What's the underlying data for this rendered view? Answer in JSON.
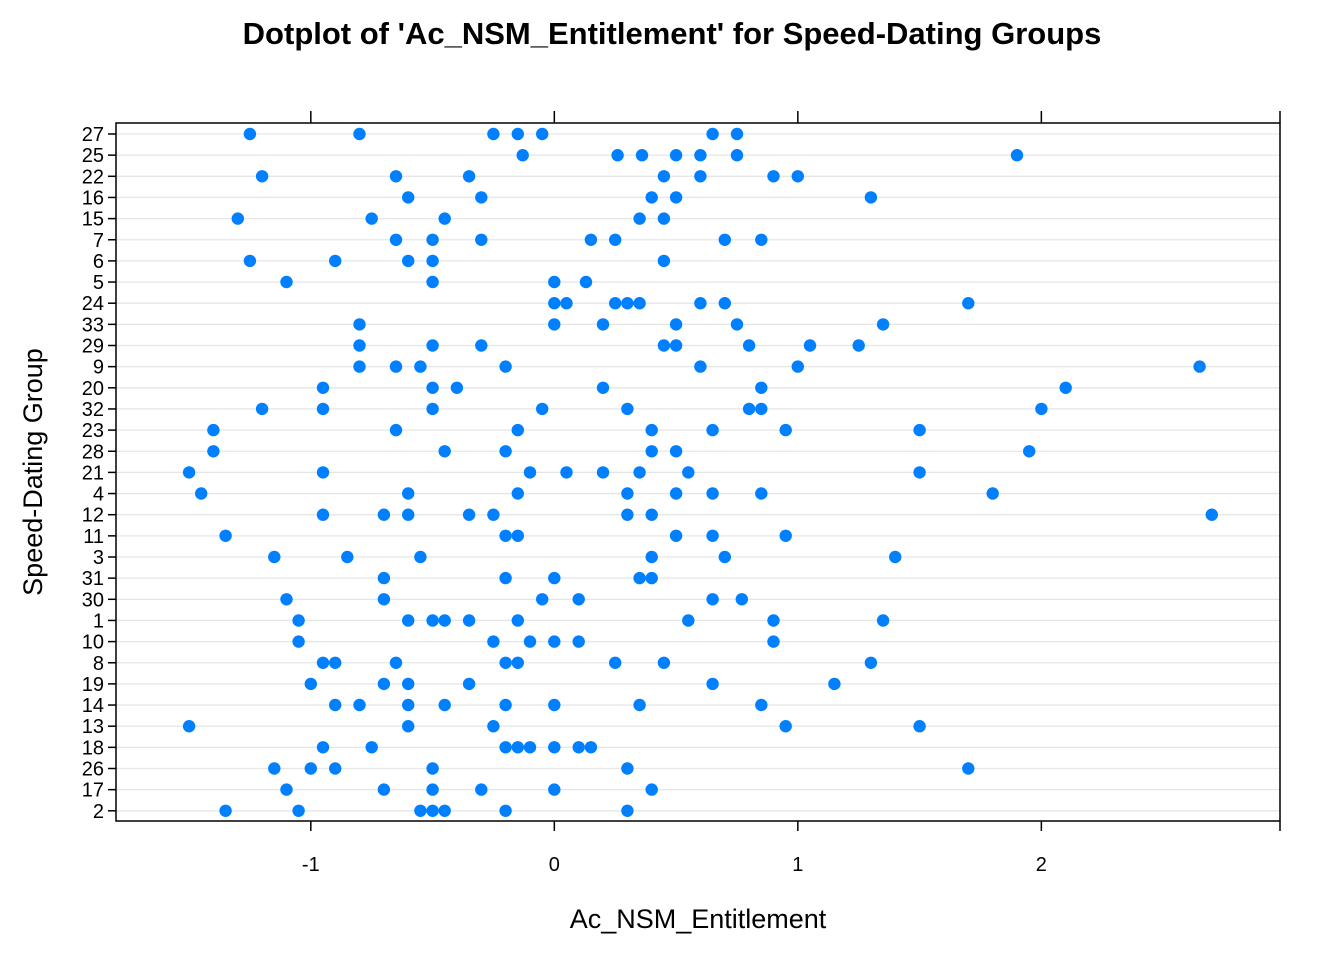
{
  "chart_data": {
    "type": "scatter",
    "title": "Dotplot of 'Ac_NSM_Entitlement' for Speed-Dating Groups",
    "xlabel": "Ac_NSM_Entitlement",
    "ylabel": "Speed-Dating Group",
    "xlim": [
      -1.8,
      2.98
    ],
    "xticks": [
      -1,
      0,
      1,
      2
    ],
    "xtick_labels": [
      "-1",
      "0",
      "1",
      "2"
    ],
    "grid": true,
    "point_color": "#0080ff",
    "categories": [
      "27",
      "25",
      "22",
      "16",
      "15",
      "7",
      "6",
      "5",
      "24",
      "33",
      "29",
      "9",
      "20",
      "32",
      "23",
      "28",
      "21",
      "4",
      "12",
      "11",
      "3",
      "31",
      "30",
      "1",
      "10",
      "8",
      "19",
      "14",
      "13",
      "18",
      "26",
      "17",
      "2"
    ],
    "groups": [
      {
        "group": "27",
        "values": [
          -1.25,
          -0.8,
          -0.25,
          -0.15,
          -0.05,
          0.65,
          0.75
        ]
      },
      {
        "group": "25",
        "values": [
          -0.13,
          0.26,
          0.36,
          0.5,
          0.6,
          0.75,
          1.9
        ]
      },
      {
        "group": "22",
        "values": [
          -1.2,
          -0.65,
          -0.35,
          0.45,
          0.6,
          0.9,
          1.0
        ]
      },
      {
        "group": "16",
        "values": [
          -0.6,
          -0.3,
          0.4,
          0.5,
          1.3
        ]
      },
      {
        "group": "15",
        "values": [
          -1.3,
          -0.75,
          -0.45,
          0.35,
          0.45
        ]
      },
      {
        "group": "7",
        "values": [
          -0.65,
          -0.5,
          -0.3,
          0.15,
          0.25,
          0.7,
          0.85
        ]
      },
      {
        "group": "6",
        "values": [
          -1.25,
          -0.9,
          -0.6,
          -0.5,
          0.45
        ]
      },
      {
        "group": "5",
        "values": [
          -1.1,
          -0.5,
          0.0,
          0.13
        ]
      },
      {
        "group": "24",
        "values": [
          0.0,
          0.05,
          0.25,
          0.3,
          0.35,
          0.6,
          0.7,
          1.7
        ]
      },
      {
        "group": "33",
        "values": [
          -0.8,
          0.0,
          0.2,
          0.5,
          0.75,
          1.35
        ]
      },
      {
        "group": "29",
        "values": [
          -0.8,
          -0.5,
          -0.3,
          0.45,
          0.5,
          0.8,
          1.05,
          1.25
        ]
      },
      {
        "group": "9",
        "values": [
          -0.8,
          -0.65,
          -0.55,
          -0.2,
          0.6,
          1.0,
          2.65
        ]
      },
      {
        "group": "20",
        "values": [
          -0.95,
          -0.5,
          -0.4,
          0.2,
          0.85,
          2.1
        ]
      },
      {
        "group": "32",
        "values": [
          -1.2,
          -0.95,
          -0.5,
          -0.05,
          0.3,
          0.8,
          0.85,
          2.0
        ]
      },
      {
        "group": "23",
        "values": [
          -1.4,
          -0.65,
          -0.15,
          0.4,
          0.65,
          0.95,
          1.5
        ]
      },
      {
        "group": "28",
        "values": [
          -1.4,
          -0.45,
          -0.2,
          0.4,
          0.5,
          1.95
        ]
      },
      {
        "group": "21",
        "values": [
          -1.5,
          -0.95,
          -0.1,
          0.05,
          0.2,
          0.35,
          0.55,
          1.5
        ]
      },
      {
        "group": "4",
        "values": [
          -1.45,
          -0.6,
          -0.15,
          0.3,
          0.5,
          0.65,
          0.85,
          1.8
        ]
      },
      {
        "group": "12",
        "values": [
          -0.95,
          -0.7,
          -0.6,
          -0.35,
          -0.25,
          0.3,
          0.4,
          2.7
        ]
      },
      {
        "group": "11",
        "values": [
          -1.35,
          -0.2,
          -0.15,
          0.5,
          0.65,
          0.95
        ]
      },
      {
        "group": "3",
        "values": [
          -1.15,
          -0.85,
          -0.55,
          0.4,
          0.7,
          1.4
        ]
      },
      {
        "group": "31",
        "values": [
          -0.7,
          -0.2,
          0.0,
          0.35,
          0.4
        ]
      },
      {
        "group": "30",
        "values": [
          -1.1,
          -0.7,
          -0.05,
          0.1,
          0.65,
          0.77
        ]
      },
      {
        "group": "1",
        "values": [
          -1.05,
          -0.6,
          -0.5,
          -0.45,
          -0.35,
          -0.15,
          0.55,
          0.9,
          1.35
        ]
      },
      {
        "group": "10",
        "values": [
          -1.05,
          -0.25,
          -0.1,
          0.0,
          0.1,
          0.9
        ]
      },
      {
        "group": "8",
        "values": [
          -0.95,
          -0.9,
          -0.65,
          -0.2,
          -0.15,
          0.25,
          0.45,
          1.3
        ]
      },
      {
        "group": "19",
        "values": [
          -1.0,
          -0.7,
          -0.6,
          -0.35,
          0.65,
          1.15
        ]
      },
      {
        "group": "14",
        "values": [
          -0.9,
          -0.8,
          -0.6,
          -0.45,
          -0.2,
          0.0,
          0.35,
          0.85
        ]
      },
      {
        "group": "13",
        "values": [
          -1.5,
          -0.6,
          -0.25,
          0.95,
          1.5
        ]
      },
      {
        "group": "18",
        "values": [
          -0.95,
          -0.75,
          -0.2,
          -0.15,
          -0.1,
          0.0,
          0.1,
          0.15
        ]
      },
      {
        "group": "26",
        "values": [
          -1.15,
          -1.0,
          -0.9,
          -0.5,
          0.3,
          1.7
        ]
      },
      {
        "group": "17",
        "values": [
          -1.1,
          -0.7,
          -0.5,
          -0.3,
          0.0,
          0.4
        ]
      },
      {
        "group": "2",
        "values": [
          -1.35,
          -1.05,
          -0.55,
          -0.5,
          -0.45,
          -0.2,
          0.3
        ]
      }
    ]
  }
}
